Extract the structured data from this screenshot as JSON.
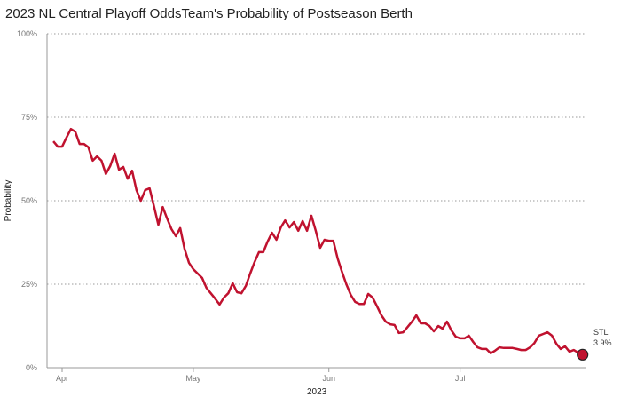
{
  "chart_data": {
    "type": "line",
    "title": "2023 NL Central Playoff OddsTeam's Probability of Postseason Berth",
    "xlabel": "2023",
    "ylabel": "Probability",
    "ylim": [
      0,
      100
    ],
    "y_ticks": [
      "0%",
      "25%",
      "50%",
      "75%",
      "100%"
    ],
    "y_tick_values": [
      0,
      25,
      50,
      75,
      100
    ],
    "x_ticks": [
      {
        "label": "Apr",
        "date": "2023-04-01"
      },
      {
        "label": "May",
        "date": "2023-05-01"
      },
      {
        "label": "Jun",
        "date": "2023-06-01"
      },
      {
        "label": "Jul",
        "date": "2023-07-01"
      }
    ],
    "grid": "horizontal dotted",
    "color": "#c0122f",
    "end_label": {
      "team": "STL",
      "value": "3.9%"
    },
    "series": [
      {
        "name": "STL",
        "points": [
          [
            "2023-03-30",
            67.8
          ],
          [
            "2023-03-31",
            66.2
          ],
          [
            "2023-04-01",
            66.2
          ],
          [
            "2023-04-02",
            68.9
          ],
          [
            "2023-04-03",
            71.5
          ],
          [
            "2023-04-04",
            70.7
          ],
          [
            "2023-04-05",
            67.0
          ],
          [
            "2023-04-06",
            67.0
          ],
          [
            "2023-04-07",
            66.0
          ],
          [
            "2023-04-08",
            62.0
          ],
          [
            "2023-04-09",
            63.3
          ],
          [
            "2023-04-10",
            62.0
          ],
          [
            "2023-04-11",
            58.0
          ],
          [
            "2023-04-12",
            60.4
          ],
          [
            "2023-04-13",
            64.1
          ],
          [
            "2023-04-14",
            59.3
          ],
          [
            "2023-04-15",
            60.1
          ],
          [
            "2023-04-16",
            56.6
          ],
          [
            "2023-04-17",
            59.0
          ],
          [
            "2023-04-18",
            53.2
          ],
          [
            "2023-04-19",
            50.0
          ],
          [
            "2023-04-20",
            53.2
          ],
          [
            "2023-04-21",
            53.7
          ],
          [
            "2023-04-22",
            48.4
          ],
          [
            "2023-04-23",
            42.8
          ],
          [
            "2023-04-24",
            48.1
          ],
          [
            "2023-04-25",
            44.7
          ],
          [
            "2023-04-26",
            41.5
          ],
          [
            "2023-04-27",
            39.4
          ],
          [
            "2023-04-28",
            41.8
          ],
          [
            "2023-04-29",
            35.6
          ],
          [
            "2023-04-30",
            31.4
          ],
          [
            "2023-05-01",
            29.5
          ],
          [
            "2023-05-02",
            28.2
          ],
          [
            "2023-05-03",
            26.9
          ],
          [
            "2023-05-04",
            23.9
          ],
          [
            "2023-05-05",
            22.3
          ],
          [
            "2023-05-06",
            20.7
          ],
          [
            "2023-05-07",
            18.9
          ],
          [
            "2023-05-08",
            21.0
          ],
          [
            "2023-05-09",
            22.3
          ],
          [
            "2023-05-10",
            25.3
          ],
          [
            "2023-05-11",
            22.6
          ],
          [
            "2023-05-12",
            22.3
          ],
          [
            "2023-05-13",
            24.5
          ],
          [
            "2023-05-14",
            28.2
          ],
          [
            "2023-05-15",
            31.6
          ],
          [
            "2023-05-16",
            34.6
          ],
          [
            "2023-05-17",
            34.6
          ],
          [
            "2023-05-18",
            37.8
          ],
          [
            "2023-05-19",
            40.4
          ],
          [
            "2023-05-20",
            38.3
          ],
          [
            "2023-05-21",
            42.0
          ],
          [
            "2023-05-22",
            44.1
          ],
          [
            "2023-05-23",
            42.0
          ],
          [
            "2023-05-24",
            43.6
          ],
          [
            "2023-05-25",
            41.0
          ],
          [
            "2023-05-26",
            43.9
          ],
          [
            "2023-05-27",
            41.0
          ],
          [
            "2023-05-28",
            45.5
          ],
          [
            "2023-05-29",
            41.0
          ],
          [
            "2023-05-30",
            35.9
          ],
          [
            "2023-05-31",
            38.3
          ],
          [
            "2023-06-01",
            38.0
          ],
          [
            "2023-06-02",
            38.0
          ],
          [
            "2023-06-03",
            32.7
          ],
          [
            "2023-06-04",
            28.7
          ],
          [
            "2023-06-05",
            25.0
          ],
          [
            "2023-06-06",
            21.8
          ],
          [
            "2023-06-07",
            19.7
          ],
          [
            "2023-06-08",
            19.1
          ],
          [
            "2023-06-09",
            19.1
          ],
          [
            "2023-06-10",
            22.1
          ],
          [
            "2023-06-11",
            21.0
          ],
          [
            "2023-06-12",
            18.4
          ],
          [
            "2023-06-13",
            15.7
          ],
          [
            "2023-06-14",
            13.8
          ],
          [
            "2023-06-15",
            13.0
          ],
          [
            "2023-06-16",
            12.8
          ],
          [
            "2023-06-17",
            10.4
          ],
          [
            "2023-06-18",
            10.6
          ],
          [
            "2023-06-19",
            12.2
          ],
          [
            "2023-06-20",
            13.8
          ],
          [
            "2023-06-21",
            15.7
          ],
          [
            "2023-06-22",
            13.3
          ],
          [
            "2023-06-23",
            13.3
          ],
          [
            "2023-06-24",
            12.5
          ],
          [
            "2023-06-25",
            10.9
          ],
          [
            "2023-06-26",
            12.5
          ],
          [
            "2023-06-27",
            11.7
          ],
          [
            "2023-06-28",
            13.8
          ],
          [
            "2023-06-29",
            11.2
          ],
          [
            "2023-06-30",
            9.3
          ],
          [
            "2023-07-01",
            8.8
          ],
          [
            "2023-07-02",
            8.8
          ],
          [
            "2023-07-03",
            9.6
          ],
          [
            "2023-07-04",
            7.7
          ],
          [
            "2023-07-05",
            6.1
          ],
          [
            "2023-07-06",
            5.6
          ],
          [
            "2023-07-07",
            5.6
          ],
          [
            "2023-07-08",
            4.3
          ],
          [
            "2023-07-09",
            5.1
          ],
          [
            "2023-07-10",
            6.1
          ],
          [
            "2023-07-11",
            5.9
          ],
          [
            "2023-07-12",
            5.9
          ],
          [
            "2023-07-13",
            5.9
          ],
          [
            "2023-07-14",
            5.6
          ],
          [
            "2023-07-15",
            5.3
          ],
          [
            "2023-07-16",
            5.3
          ],
          [
            "2023-07-17",
            6.1
          ],
          [
            "2023-07-18",
            7.4
          ],
          [
            "2023-07-19",
            9.6
          ],
          [
            "2023-07-20",
            10.1
          ],
          [
            "2023-07-21",
            10.6
          ],
          [
            "2023-07-22",
            9.6
          ],
          [
            "2023-07-23",
            7.2
          ],
          [
            "2023-07-24",
            5.6
          ],
          [
            "2023-07-25",
            6.4
          ],
          [
            "2023-07-26",
            4.8
          ],
          [
            "2023-07-27",
            5.3
          ],
          [
            "2023-07-28",
            4.5
          ],
          [
            "2023-07-29",
            3.9
          ]
        ]
      }
    ]
  }
}
